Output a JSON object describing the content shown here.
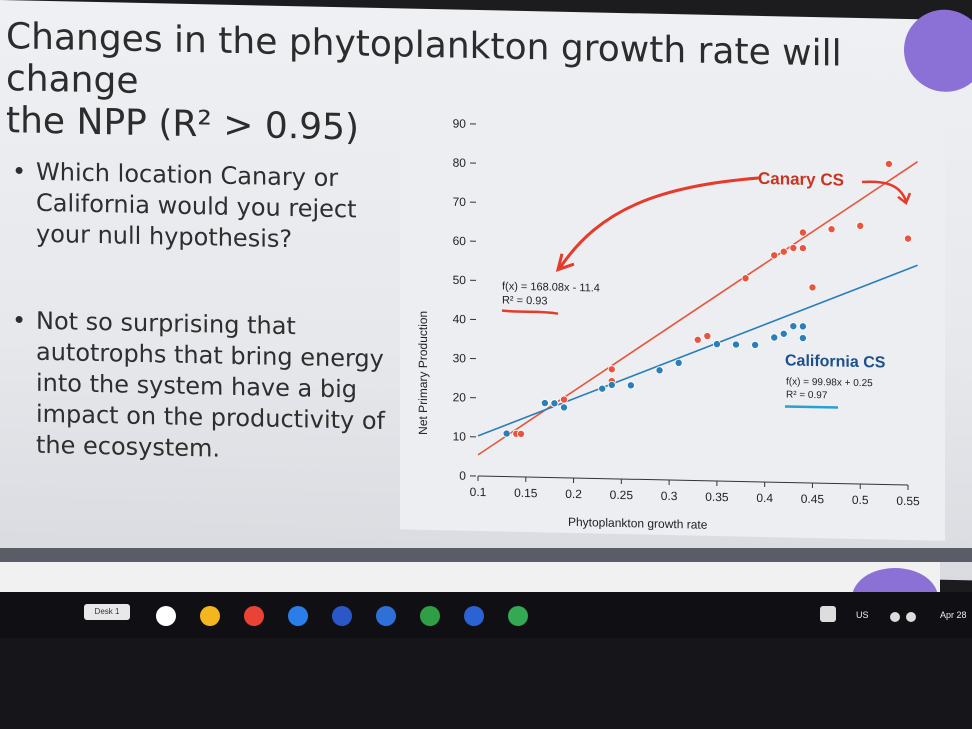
{
  "slide": {
    "title_line1": "Changes in the phytoplankton growth rate will change",
    "title_line2": "the NPP (R² > 0.95)",
    "bullet1": "Which location Canary or California would you reject your null hypothesis?",
    "bullet2": "Not so surprising that autotrophs that bring energy into the system have a big impact on the productivity of the ecosystem."
  },
  "chart_data": {
    "type": "scatter",
    "xlabel": "Phytoplankton growth rate",
    "ylabel": "Net Primary Production",
    "x_ticks": [
      "0.1",
      "0.15",
      "0.2",
      "0.25",
      "0.3",
      "0.35",
      "0.4",
      "0.45",
      "0.5",
      "0.55"
    ],
    "y_ticks": [
      "0",
      "10",
      "20",
      "30",
      "40",
      "50",
      "60",
      "70",
      "80",
      "90"
    ],
    "xlim": [
      0.1,
      0.55
    ],
    "ylim": [
      0,
      90
    ],
    "series": [
      {
        "name": "Canary CS",
        "color": "#e8553e",
        "fit_label": "f(x) = 168.08x - 11.4",
        "r2_label": "R² = 0.93",
        "points": [
          [
            0.14,
            11
          ],
          [
            0.145,
            11
          ],
          [
            0.18,
            19
          ],
          [
            0.19,
            20
          ],
          [
            0.24,
            25
          ],
          [
            0.24,
            28
          ],
          [
            0.33,
            36
          ],
          [
            0.34,
            37
          ],
          [
            0.38,
            52
          ],
          [
            0.41,
            58
          ],
          [
            0.42,
            59
          ],
          [
            0.43,
            60
          ],
          [
            0.44,
            64
          ],
          [
            0.44,
            60
          ],
          [
            0.45,
            50
          ],
          [
            0.47,
            65
          ],
          [
            0.5,
            66
          ],
          [
            0.55,
            63
          ],
          [
            0.53,
            82
          ]
        ]
      },
      {
        "name": "California CS",
        "color": "#2a7fb8",
        "fit_label": "f(x) = 99.98x + 0.25",
        "r2_label": "R² = 0.97",
        "points": [
          [
            0.13,
            11
          ],
          [
            0.17,
            19
          ],
          [
            0.18,
            19
          ],
          [
            0.19,
            18
          ],
          [
            0.23,
            23
          ],
          [
            0.24,
            24
          ],
          [
            0.26,
            24
          ],
          [
            0.29,
            28
          ],
          [
            0.31,
            30
          ],
          [
            0.35,
            35
          ],
          [
            0.37,
            35
          ],
          [
            0.39,
            35
          ],
          [
            0.41,
            37
          ],
          [
            0.42,
            38
          ],
          [
            0.43,
            40
          ],
          [
            0.44,
            40
          ],
          [
            0.44,
            37
          ]
        ]
      }
    ]
  },
  "taskbar": {
    "desk_label": "Desk 1",
    "locale": "US",
    "date": "Apr 28"
  }
}
